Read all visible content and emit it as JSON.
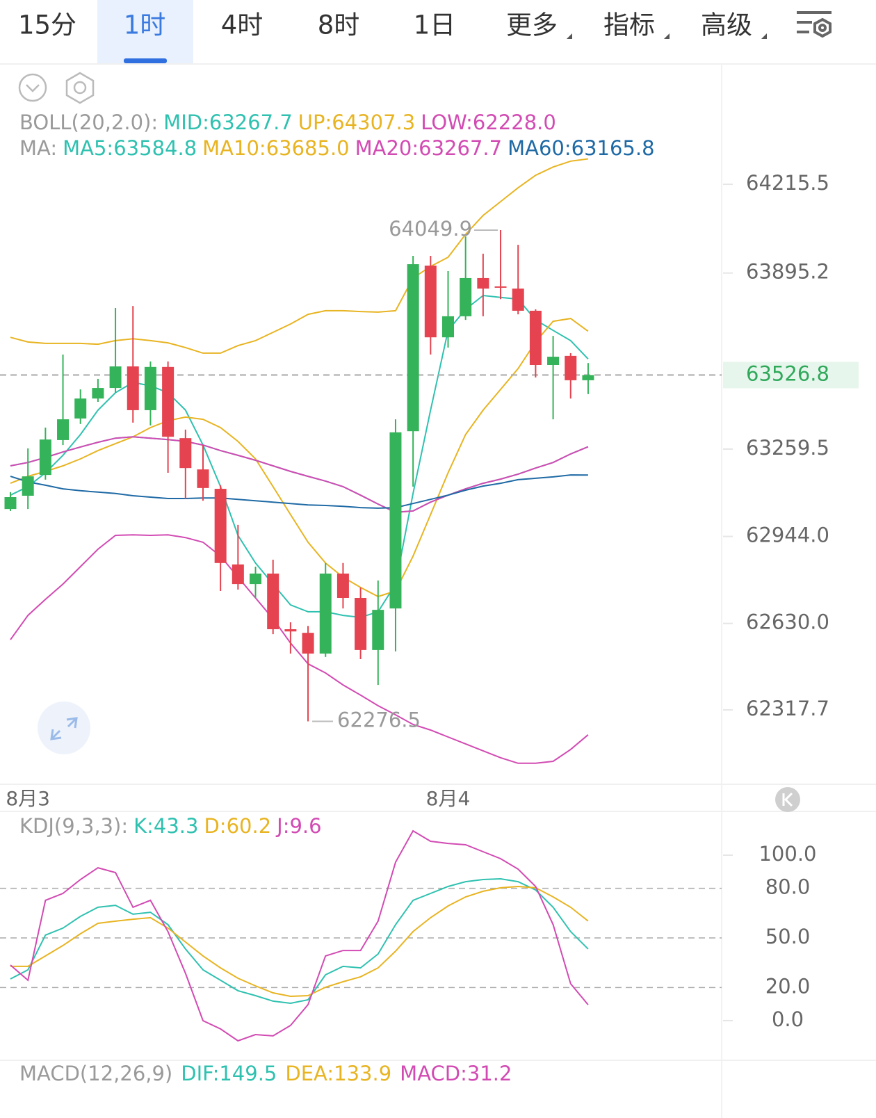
{
  "tabs": [
    {
      "label": "15分"
    },
    {
      "label": "1时",
      "selected": true
    },
    {
      "label": "4时"
    },
    {
      "label": "8时"
    },
    {
      "label": "1日"
    },
    {
      "label": "更多",
      "dropdown": true
    },
    {
      "label": "指标",
      "dropdown": true
    },
    {
      "label": "高级",
      "dropdown": true
    }
  ],
  "chart_data": [
    {
      "type": "candlestick",
      "up_color": "#35b35a",
      "down_color": "#e4434f",
      "categories": [
        null,
        "8月3",
        null,
        null,
        null,
        null,
        null,
        null,
        null,
        null,
        null,
        null,
        null,
        null,
        null,
        null,
        null,
        null,
        null,
        null,
        null,
        null,
        null,
        null,
        null,
        "8月4",
        null,
        null,
        null,
        null,
        null,
        null,
        null,
        null
      ],
      "open": [
        63043,
        63091,
        63166,
        63292,
        63370,
        63442,
        63480,
        63558,
        63400,
        63556,
        63299,
        63186,
        63116,
        62843,
        62772,
        62810,
        62609,
        62596,
        62521,
        62810,
        62722,
        62534,
        62684,
        63324,
        63922,
        63663,
        63739,
        63877,
        63847,
        63839,
        63759,
        63563,
        63596,
        63508
      ],
      "high": [
        63104,
        63262,
        63337,
        63601,
        63475,
        63513,
        63769,
        63776,
        63576,
        63576,
        63330,
        63274,
        63129,
        62986,
        62835,
        62860,
        62634,
        62621,
        62848,
        62848,
        62760,
        62785,
        63367,
        63957,
        63957,
        63902,
        64027,
        63965,
        64049.9,
        63997,
        63764,
        63668,
        63606,
        63570
      ],
      "low": [
        63036,
        63043,
        63149,
        63274,
        63350,
        63430,
        63463,
        63355,
        63345,
        63174,
        63079,
        63073,
        62747,
        62752,
        62722,
        62591,
        62521,
        62276.5,
        62509,
        62684,
        62501,
        62408,
        62529,
        63124,
        63601,
        63626,
        63726,
        63739,
        63801,
        63746,
        63518,
        63367,
        63442,
        63458
      ],
      "close": [
        63086,
        63161,
        63294,
        63367,
        63442,
        63480,
        63558,
        63400,
        63556,
        63304,
        63191,
        63119,
        62848,
        62772,
        62810,
        62609,
        62601,
        62521,
        62810,
        62722,
        62534,
        62679,
        63320,
        63927,
        63663,
        63739,
        63877,
        63839,
        63842,
        63759,
        63563,
        63593,
        63508,
        63526.8
      ],
      "ylim": [
        62049.2,
        64642.5
      ],
      "yticks": [
        64215.5,
        63895.2,
        63259.5,
        {
          "value": 62944,
          "label": "62944.0"
        },
        {
          "value": 62630,
          "label": "62630.0"
        },
        62317.7
      ],
      "indicators": [
        {
          "label": "BOLL(20,2.0):",
          "series": [
            {
              "name": "MID:",
              "legend_value": "63267.7",
              "color": "#2fc1b0",
              "values": [
                63199,
                63211,
                63229,
                63249,
                63267,
                63284,
                63299,
                63304,
                63299,
                63294,
                63287,
                63274,
                63254,
                63237,
                63219,
                63199,
                63179,
                63161,
                63144,
                63124,
                63093,
                63061,
                63031,
                63036,
                63068,
                63093,
                63116,
                63136,
                63151,
                63169,
                63191,
                63211,
                63242,
                63267.7
              ]
            },
            {
              "name": "UP:",
              "legend_value": "64307.3",
              "color": "#e8b422",
              "values": [
                63663,
                63646,
                63641,
                63641,
                63641,
                63638,
                63651,
                63658,
                63651,
                63643,
                63626,
                63606,
                63606,
                63633,
                63651,
                63681,
                63711,
                63746,
                63759,
                63759,
                63756,
                63754,
                63759,
                63877,
                63919,
                63952,
                64035,
                64103,
                64153,
                64203,
                64248,
                64278,
                64299,
                64307.3
              ]
            },
            {
              "name": "LOW:",
              "legend_value": "62228.0",
              "color": "#d24bb3",
              "values": [
                62571,
                62659,
                62717,
                62772,
                62835,
                62898,
                62948,
                62950,
                62948,
                62950,
                62940,
                62923,
                62873,
                62797,
                62722,
                62647,
                62559,
                62484,
                62451,
                62408,
                62371,
                62333,
                62300,
                62265,
                62245,
                62220,
                62195,
                62170,
                62145,
                62125,
                62125,
                62132,
                62175,
                62228.0
              ]
            }
          ]
        },
        {
          "label": "MA:",
          "series": [
            {
              "name": "MA5:",
              "legend_value": "63584.8",
              "color": "#2fc1b0",
              "values": [
                63093,
                63124,
                63174,
                63237,
                63312,
                63400,
                63463,
                63500,
                63488,
                63463,
                63400,
                63274,
                63124,
                62948,
                62848,
                62772,
                62697,
                62672,
                62672,
                62659,
                62652,
                62672,
                62772,
                63099,
                63400,
                63688,
                63764,
                63814,
                63807,
                63801,
                63726,
                63688,
                63651,
                63584.8
              ]
            },
            {
              "name": "MA10:",
              "legend_value": "63685.0",
              "color": "#e8b422",
              "values": [
                63136,
                63161,
                63179,
                63199,
                63224,
                63254,
                63279,
                63304,
                63337,
                63362,
                63375,
                63367,
                63337,
                63287,
                63224,
                63124,
                63023,
                62923,
                62848,
                62797,
                62760,
                62727,
                62747,
                62873,
                63023,
                63174,
                63312,
                63400,
                63475,
                63550,
                63646,
                63721,
                63731,
                63685.0
              ]
            },
            {
              "name": "MA20:",
              "legend_value": "63267.7",
              "color": "#d24bb3",
              "values": [
                63199,
                63211,
                63229,
                63249,
                63267,
                63284,
                63299,
                63304,
                63299,
                63294,
                63287,
                63274,
                63254,
                63237,
                63219,
                63199,
                63179,
                63161,
                63144,
                63124,
                63093,
                63061,
                63031,
                63036,
                63068,
                63093,
                63116,
                63136,
                63151,
                63169,
                63191,
                63211,
                63242,
                63267.7
              ]
            },
            {
              "name": "MA60:",
              "legend_value": "63165.8",
              "color": "#1f6aa5",
              "values": [
                63161,
                63141,
                63129,
                63116,
                63109,
                63104,
                63099,
                63091,
                63086,
                63081,
                63081,
                63083,
                63083,
                63078,
                63073,
                63068,
                63063,
                63058,
                63056,
                63053,
                63048,
                63046,
                63048,
                63063,
                63078,
                63093,
                63111,
                63126,
                63136,
                63149,
                63154,
                63159,
                63166,
                63165.8
              ]
            }
          ]
        }
      ]
    },
    {
      "type": "line",
      "title": "KDJ(9,3,3):",
      "ylim": [
        -22.7,
        125.2
      ],
      "yticks": [
        {
          "value": 100,
          "label": "100.0"
        },
        {
          "value": 80,
          "label": "80.0"
        },
        {
          "value": 50,
          "label": "50.0"
        },
        {
          "value": 20,
          "label": "20.0"
        },
        {
          "value": 0,
          "label": "0.0"
        }
      ],
      "series": [
        {
          "name": "K:",
          "legend_value": "43.3",
          "color": "#2fc1b0",
          "values": [
            25.2,
            30.7,
            51.7,
            55.9,
            63.0,
            68.5,
            69.7,
            64.3,
            65.5,
            58.0,
            43.3,
            30.7,
            24.4,
            18.1,
            15.1,
            11.8,
            10.5,
            12.6,
            27.7,
            32.8,
            31.9,
            40.3,
            58.0,
            72.7,
            76.9,
            81.1,
            84.0,
            85.3,
            85.7,
            84.0,
            79.0,
            68.5,
            53.8,
            43.3
          ]
        },
        {
          "name": "D:",
          "legend_value": "60.2",
          "color": "#e8b422",
          "values": [
            32.8,
            32.8,
            39.1,
            45.4,
            52.5,
            58.8,
            60.1,
            61.3,
            62.2,
            55.9,
            47.5,
            39.1,
            31.9,
            25.6,
            21.0,
            16.8,
            14.7,
            15.1,
            20.2,
            23.5,
            26.5,
            31.9,
            42.0,
            53.8,
            62.2,
            69.3,
            74.8,
            78.2,
            80.3,
            81.1,
            80.3,
            74.8,
            68.5,
            60.2
          ]
        },
        {
          "name": "J:",
          "legend_value": "9.6",
          "color": "#d24bb3",
          "values": [
            33.6,
            24.4,
            72.7,
            76.9,
            85.3,
            92.4,
            89.5,
            68.5,
            72.7,
            53.8,
            28.6,
            0,
            -5.0,
            -12.2,
            -8.4,
            -9.2,
            -2.9,
            9.7,
            39.1,
            42.4,
            42.4,
            60.1,
            95.8,
            114.7,
            108.4,
            107.1,
            106.3,
            102.1,
            97.9,
            91.6,
            81.1,
            58.0,
            22.3,
            9.6
          ]
        }
      ]
    }
  ],
  "macd": {
    "title": "MACD(12,26,9)",
    "items": [
      {
        "name": "DIF:",
        "value": 149.5,
        "color": "#2fc1b0"
      },
      {
        "name": "DEA:",
        "value": 133.9,
        "color": "#e8b422"
      },
      {
        "name": "MACD:",
        "value": 31.2,
        "color": "#d24bb3"
      }
    ]
  }
}
